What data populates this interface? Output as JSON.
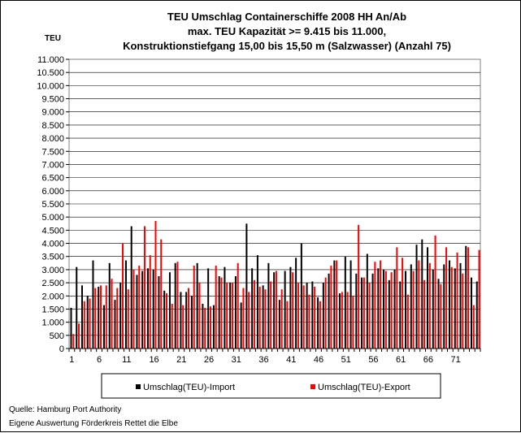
{
  "chart_data": {
    "type": "bar",
    "title": "TEU Umschlag Containerschiffe 2008 HH An/Ab",
    "title_lines": [
      "TEU Umschlag Containerschiffe 2008 HH An/Ab",
      "max. TEU Kapazität >= 9.415 bis 11.000,",
      "Konstruktionstiefgang 15,00 bis 15,50 m (Salzwasser)  (Anzahl 75)"
    ],
    "ylabel": "TEU",
    "ylim": [
      0,
      11000
    ],
    "y_ticks": [
      0,
      500,
      1000,
      1500,
      2000,
      2500,
      3000,
      3500,
      4000,
      4500,
      5000,
      5500,
      6000,
      6500,
      7000,
      7500,
      8000,
      8500,
      9000,
      9500,
      10000,
      10500,
      11000
    ],
    "y_tick_labels": [
      "0",
      "500",
      "1.000",
      "1.500",
      "2.000",
      "2.500",
      "3.000",
      "3.500",
      "4.000",
      "4.500",
      "5.000",
      "5.500",
      "6.000",
      "6.500",
      "7.000",
      "7.500",
      "8.000",
      "8.500",
      "9.000",
      "9.500",
      "10.000",
      "10.500",
      "11.000"
    ],
    "x_tick_labels": [
      "1",
      "6",
      "11",
      "16",
      "21",
      "26",
      "31",
      "36",
      "41",
      "46",
      "51",
      "56",
      "61",
      "66",
      "71"
    ],
    "x_tick_positions": [
      1,
      6,
      11,
      16,
      21,
      26,
      31,
      36,
      41,
      46,
      51,
      56,
      61,
      66,
      71
    ],
    "categories_count": 75,
    "legend_position": "bottom",
    "grid": "horizontal",
    "series": [
      {
        "name": "Umschlag(TEU)-Import",
        "color": "#000000",
        "values": [
          1550,
          3100,
          2400,
          2000,
          3350,
          2350,
          1650,
          3250,
          1850,
          2500,
          3350,
          4650,
          2800,
          2950,
          3050,
          3000,
          2750,
          2200,
          2900,
          3250,
          2150,
          2150,
          2000,
          3250,
          1700,
          3050,
          1650,
          2750,
          3100,
          2500,
          2750,
          1750,
          4750,
          3050,
          3550,
          2400,
          3250,
          2900,
          1850,
          2950,
          3100,
          3450,
          4000,
          2500,
          2550,
          1950,
          2500,
          2850,
          3350,
          2100,
          3500,
          3350,
          2850,
          2700,
          3600,
          2850,
          3050,
          3000,
          2600,
          3000,
          2550,
          2950,
          3200,
          3950,
          4150,
          3850,
          3000,
          2650,
          3200,
          3350,
          3050,
          3250,
          3900,
          2700,
          2550
        ],
        "label_visible": false
      },
      {
        "name": "Umschlag(TEU)-Export",
        "color": "#ff0000",
        "values": [
          550,
          950,
          1800,
          1900,
          2300,
          2400,
          2400,
          2650,
          2300,
          4000,
          2250,
          3000,
          3150,
          4650,
          3550,
          4850,
          4150,
          2100,
          1700,
          3300,
          1650,
          2300,
          3150,
          2500,
          1550,
          1600,
          3150,
          2700,
          2500,
          2500,
          3250,
          2300,
          2150,
          2600,
          2350,
          2250,
          2550,
          2950,
          2250,
          1800,
          2900,
          2500,
          2400,
          2050,
          2350,
          1800,
          2700,
          3150,
          3350,
          2150,
          2150,
          2000,
          4700,
          2700,
          2500,
          3300,
          3350,
          2950,
          2900,
          3850,
          3450,
          2050,
          2950,
          3350,
          2600,
          3250,
          4300,
          2450,
          3850,
          3100,
          3650,
          2850,
          3850,
          1650,
          3750
        ]
      }
    ]
  },
  "source_lines": [
    "Quelle: Hamburg Port Authority",
    "Eigene Auswertung Förderkreis Rettet die Elbe"
  ]
}
